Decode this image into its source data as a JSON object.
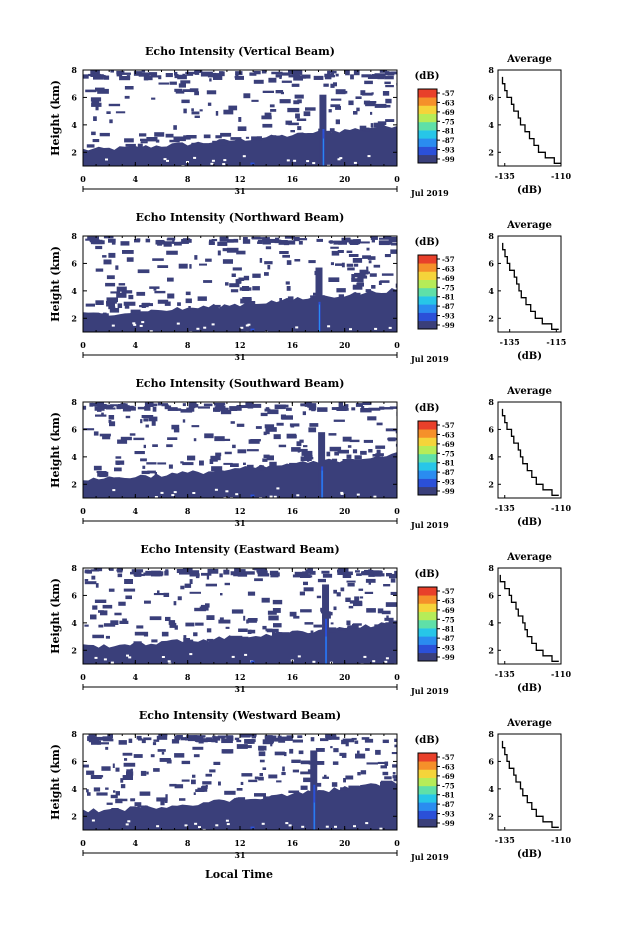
{
  "chart_data": [
    {
      "type": "heatmap",
      "title": "Echo Intensity (Vertical Beam)",
      "ylabel": "Height (km)",
      "x_ticks": [
        "0",
        "4",
        "8",
        "12",
        "16",
        "20",
        "0"
      ],
      "date_label": "31",
      "month_label": "Jul 2019",
      "y_ticks": [
        "2",
        "4",
        "6",
        "8"
      ],
      "ylim": [
        1,
        8
      ],
      "xlim": [
        0,
        24
      ],
      "colorbar": {
        "unit": "(dB)",
        "labels": [
          "-57",
          "-63",
          "-69",
          "-75",
          "-81",
          "-87",
          "-93",
          "-99"
        ]
      },
      "average": {
        "title": "Average",
        "xlabel": "(dB)",
        "x_ticks": [
          "-135",
          "-110"
        ],
        "xlim": [
          -138,
          -110
        ],
        "y_ticks": [
          "2",
          "4",
          "6",
          "8"
        ],
        "profile": [
          [
            1.2,
            -110
          ],
          [
            1.6,
            -113
          ],
          [
            2.0,
            -117
          ],
          [
            2.5,
            -120
          ],
          [
            3.0,
            -122
          ],
          [
            3.5,
            -124
          ],
          [
            4.0,
            -126
          ],
          [
            4.5,
            -128
          ],
          [
            5.0,
            -129
          ],
          [
            5.5,
            -131
          ],
          [
            6.0,
            -132
          ],
          [
            6.5,
            -134
          ],
          [
            7.0,
            -135
          ],
          [
            7.5,
            -136
          ]
        ]
      },
      "features": {
        "boundary_start": 2.2,
        "boundary_end": 4.0,
        "plume_time": 18.3,
        "plume_top": 6.2
      }
    },
    {
      "type": "heatmap",
      "title": "Echo Intensity (Northward Beam)",
      "ylabel": "Height (km)",
      "x_ticks": [
        "0",
        "4",
        "8",
        "12",
        "16",
        "20",
        "0"
      ],
      "date_label": "31",
      "month_label": "Jul 2019",
      "y_ticks": [
        "2",
        "4",
        "6",
        "8"
      ],
      "ylim": [
        1,
        8
      ],
      "xlim": [
        0,
        24
      ],
      "colorbar": {
        "unit": "(dB)",
        "labels": [
          "-57",
          "-63",
          "-69",
          "-75",
          "-81",
          "-87",
          "-93",
          "-99"
        ]
      },
      "average": {
        "title": "Average",
        "xlabel": "(dB)",
        "x_ticks": [
          "-135",
          "-115"
        ],
        "xlim": [
          -140,
          -113
        ],
        "y_ticks": [
          "2",
          "4",
          "6",
          "8"
        ],
        "profile": [
          [
            1.2,
            -114
          ],
          [
            1.6,
            -117
          ],
          [
            2.0,
            -121
          ],
          [
            2.5,
            -124
          ],
          [
            3.0,
            -126
          ],
          [
            3.5,
            -128
          ],
          [
            4.0,
            -130
          ],
          [
            4.5,
            -131
          ],
          [
            5.0,
            -132
          ],
          [
            5.5,
            -133
          ],
          [
            6.0,
            -135
          ],
          [
            6.5,
            -136
          ],
          [
            7.0,
            -137
          ],
          [
            7.5,
            -138
          ]
        ]
      },
      "features": {
        "boundary_start": 2.3,
        "boundary_end": 4.1,
        "plume_time": 18.0,
        "plume_top": 5.7
      }
    },
    {
      "type": "heatmap",
      "title": "Echo Intensity (Southward Beam)",
      "ylabel": "Height (km)",
      "x_ticks": [
        "0",
        "4",
        "8",
        "12",
        "16",
        "20",
        "0"
      ],
      "date_label": "31",
      "month_label": "Jul 2019",
      "y_ticks": [
        "2",
        "4",
        "6",
        "8"
      ],
      "ylim": [
        1,
        8
      ],
      "xlim": [
        0,
        24
      ],
      "colorbar": {
        "unit": "(dB)",
        "labels": [
          "-57",
          "-63",
          "-69",
          "-75",
          "-81",
          "-87",
          "-93",
          "-99"
        ]
      },
      "average": {
        "title": "Average",
        "xlabel": "(dB)",
        "x_ticks": [
          "-135",
          "-110"
        ],
        "xlim": [
          -138,
          -110
        ],
        "y_ticks": [
          "2",
          "4",
          "6",
          "8"
        ],
        "profile": [
          [
            1.2,
            -111
          ],
          [
            1.6,
            -114
          ],
          [
            2.0,
            -118
          ],
          [
            2.5,
            -121
          ],
          [
            3.0,
            -123
          ],
          [
            3.5,
            -125
          ],
          [
            4.0,
            -127
          ],
          [
            4.5,
            -128
          ],
          [
            5.0,
            -129
          ],
          [
            5.5,
            -131
          ],
          [
            6.0,
            -132
          ],
          [
            6.5,
            -134
          ],
          [
            7.0,
            -135
          ],
          [
            7.5,
            -136
          ]
        ]
      },
      "features": {
        "boundary_start": 2.4,
        "boundary_end": 4.2,
        "plume_time": 18.2,
        "plume_top": 5.8
      }
    },
    {
      "type": "heatmap",
      "title": "Echo Intensity (Eastward Beam)",
      "ylabel": "Height (km)",
      "x_ticks": [
        "0",
        "4",
        "8",
        "12",
        "16",
        "20",
        "0"
      ],
      "date_label": "31",
      "month_label": "Jul 2019",
      "y_ticks": [
        "2",
        "4",
        "6",
        "8"
      ],
      "ylim": [
        1,
        8
      ],
      "xlim": [
        0,
        24
      ],
      "colorbar": {
        "unit": "(dB)",
        "labels": [
          "-57",
          "-63",
          "-69",
          "-75",
          "-81",
          "-87",
          "-93",
          "-99"
        ]
      },
      "average": {
        "title": "Average",
        "xlabel": "(dB)",
        "x_ticks": [
          "-135",
          "-110"
        ],
        "xlim": [
          -138,
          -110
        ],
        "y_ticks": [
          "2",
          "4",
          "6",
          "8"
        ],
        "profile": [
          [
            1.2,
            -111
          ],
          [
            1.6,
            -114
          ],
          [
            2.0,
            -118
          ],
          [
            2.5,
            -121
          ],
          [
            3.0,
            -123
          ],
          [
            3.5,
            -125
          ],
          [
            4.0,
            -126
          ],
          [
            4.5,
            -127
          ],
          [
            5.0,
            -129
          ],
          [
            5.5,
            -130
          ],
          [
            6.0,
            -132
          ],
          [
            6.5,
            -133
          ],
          [
            7.0,
            -135
          ],
          [
            7.5,
            -137
          ]
        ]
      },
      "features": {
        "boundary_start": 2.3,
        "boundary_end": 4.0,
        "plume_time": 18.5,
        "plume_top": 6.8
      }
    },
    {
      "type": "heatmap",
      "title": "Echo Intensity (Westward Beam)",
      "ylabel": "Height (km)",
      "x_ticks": [
        "0",
        "4",
        "8",
        "12",
        "16",
        "20",
        "0"
      ],
      "date_label": "31",
      "month_label": "Jul 2019",
      "y_ticks": [
        "2",
        "4",
        "6",
        "8"
      ],
      "ylim": [
        1,
        8
      ],
      "xlim": [
        0,
        24
      ],
      "colorbar": {
        "unit": "(dB)",
        "labels": [
          "-57",
          "-63",
          "-69",
          "-75",
          "-81",
          "-87",
          "-93",
          "-99"
        ]
      },
      "average": {
        "title": "Average",
        "xlabel": "(dB)",
        "x_ticks": [
          "-135",
          "-110"
        ],
        "xlim": [
          -138,
          -110
        ],
        "y_ticks": [
          "2",
          "4",
          "6",
          "8"
        ],
        "profile": [
          [
            1.2,
            -111
          ],
          [
            1.6,
            -114
          ],
          [
            2.0,
            -118
          ],
          [
            2.5,
            -121
          ],
          [
            3.0,
            -123
          ],
          [
            3.5,
            -125
          ],
          [
            4.0,
            -127
          ],
          [
            4.5,
            -128
          ],
          [
            5.0,
            -130
          ],
          [
            5.5,
            -131
          ],
          [
            6.0,
            -133
          ],
          [
            6.5,
            -134
          ],
          [
            7.0,
            -135
          ],
          [
            7.5,
            -136
          ]
        ]
      },
      "features": {
        "boundary_start": 2.4,
        "boundary_end": 4.5,
        "plume_time": 17.6,
        "plume_top": 6.8
      }
    }
  ],
  "xlabel": "Local Time",
  "colors": {
    "background": "#3a3f7a",
    "colorbar": [
      "#3a3f7a",
      "#2b50d8",
      "#2a8cf0",
      "#27c6e8",
      "#5fe0a8",
      "#b6ec58",
      "#f5d43a",
      "#f5902a",
      "#e8402a"
    ]
  }
}
